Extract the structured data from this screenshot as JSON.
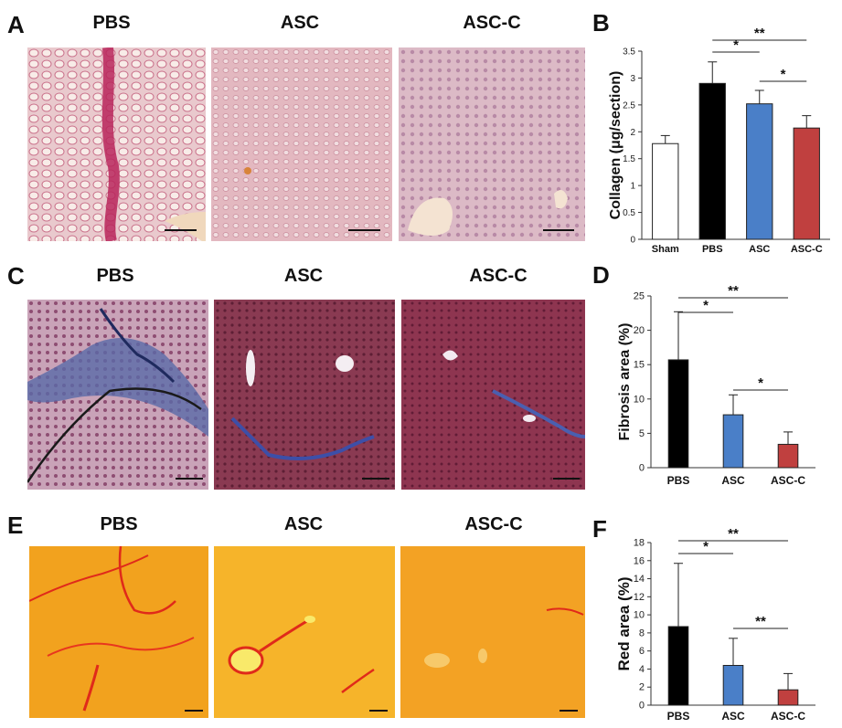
{
  "panels": {
    "A": {
      "label": "A",
      "titles": [
        "PBS",
        "ASC",
        "ASC-C"
      ]
    },
    "B": {
      "label": "B"
    },
    "C": {
      "label": "C",
      "titles": [
        "PBS",
        "ASC",
        "ASC-C"
      ]
    },
    "D": {
      "label": "D"
    },
    "E": {
      "label": "E",
      "titles": [
        "PBS",
        "ASC",
        "ASC-C"
      ]
    },
    "F": {
      "label": "F"
    }
  },
  "chart_data": [
    {
      "panel": "B",
      "type": "bar",
      "ylabel": "Collagen (μg/section)",
      "categories": [
        "Sham",
        "PBS",
        "ASC",
        "ASC-C"
      ],
      "values": [
        1.78,
        2.9,
        2.52,
        2.07
      ],
      "errors": [
        0.15,
        0.4,
        0.25,
        0.23
      ],
      "colors": [
        "#ffffff",
        "#000000",
        "#4a7fc8",
        "#c0403f"
      ],
      "ylim": [
        0,
        3.5
      ],
      "yticks": [
        "0",
        "0.5",
        "1",
        "1.5",
        "2",
        "2.5",
        "3",
        "3.5"
      ],
      "significance": [
        {
          "from": "PBS",
          "to": "ASC-C",
          "label": "**"
        },
        {
          "from": "PBS",
          "to": "ASC",
          "label": "*"
        },
        {
          "from": "ASC",
          "to": "ASC-C",
          "label": "*"
        }
      ]
    },
    {
      "panel": "D",
      "type": "bar",
      "ylabel": "Fibrosis area (%)",
      "categories": [
        "PBS",
        "ASC",
        "ASC-C"
      ],
      "values": [
        15.7,
        7.7,
        3.4
      ],
      "errors": [
        7.0,
        2.9,
        1.8
      ],
      "colors": [
        "#000000",
        "#4a7fc8",
        "#c0403f"
      ],
      "ylim": [
        0,
        25
      ],
      "yticks": [
        "0",
        "5",
        "10",
        "15",
        "20",
        "25"
      ],
      "significance": [
        {
          "from": "PBS",
          "to": "ASC-C",
          "label": "**"
        },
        {
          "from": "PBS",
          "to": "ASC",
          "label": "*"
        },
        {
          "from": "ASC",
          "to": "ASC-C",
          "label": "*"
        }
      ]
    },
    {
      "panel": "F",
      "type": "bar",
      "ylabel": "Red area (%)",
      "categories": [
        "PBS",
        "ASC",
        "ASC-C"
      ],
      "values": [
        8.7,
        4.4,
        1.7
      ],
      "errors": [
        7.0,
        3.0,
        1.8
      ],
      "colors": [
        "#000000",
        "#4a7fc8",
        "#c0403f"
      ],
      "ylim": [
        0,
        18
      ],
      "yticks": [
        "0",
        "2",
        "4",
        "6",
        "8",
        "10",
        "12",
        "14",
        "16",
        "18"
      ],
      "significance": [
        {
          "from": "PBS",
          "to": "ASC-C",
          "label": "**"
        },
        {
          "from": "PBS",
          "to": "ASC",
          "label": "*"
        },
        {
          "from": "ASC",
          "to": "ASC-C",
          "label": "**"
        }
      ]
    }
  ],
  "scale_bar_color": "#111111"
}
